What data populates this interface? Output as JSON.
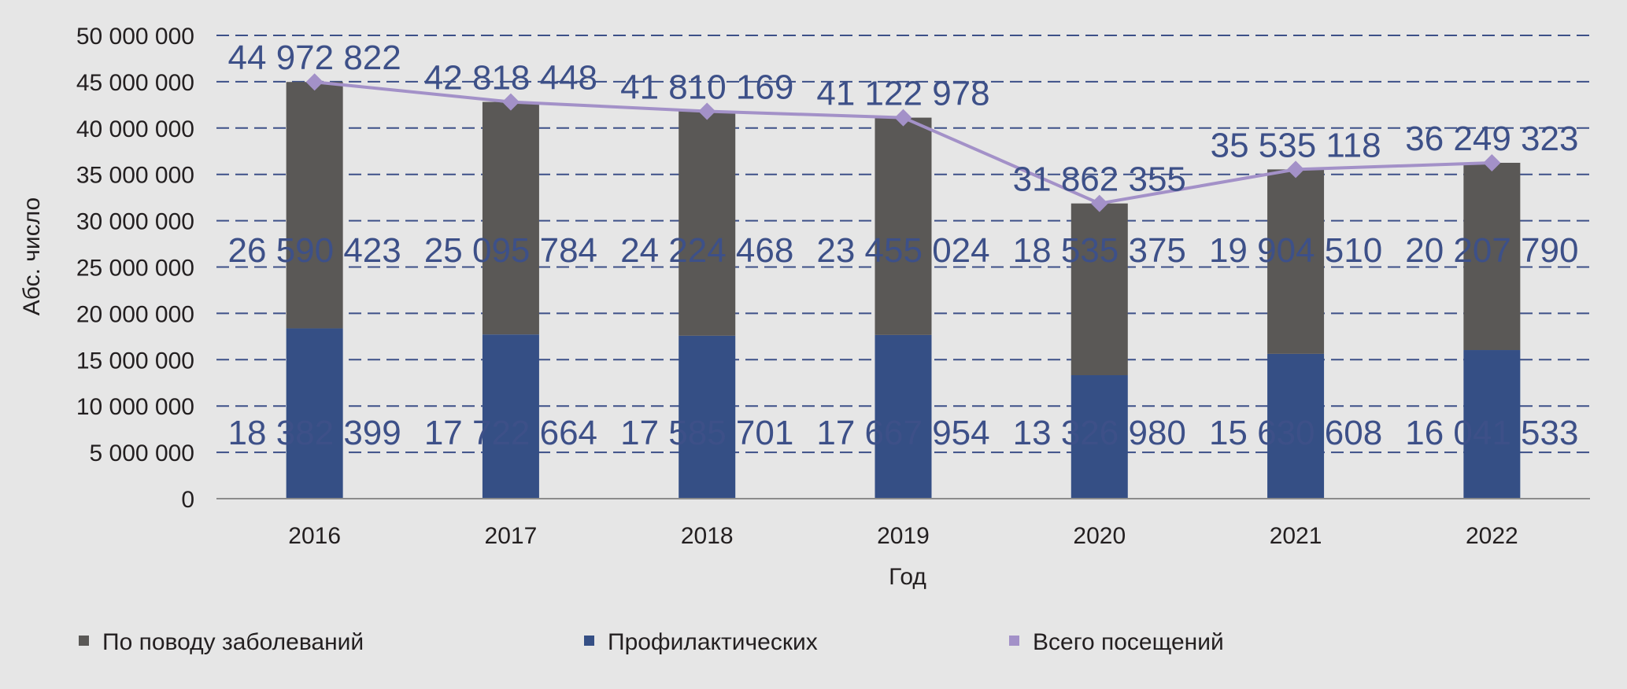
{
  "chart_data": {
    "type": "bar",
    "stacked": true,
    "categories": [
      "2016",
      "2017",
      "2018",
      "2019",
      "2020",
      "2021",
      "2022"
    ],
    "xlabel": "Год",
    "ylabel": "Абс. число",
    "ylim": [
      0,
      50000000
    ],
    "yticks": [
      0,
      5000000,
      10000000,
      15000000,
      20000000,
      25000000,
      30000000,
      35000000,
      40000000,
      45000000,
      50000000
    ],
    "ytick_labels": [
      "0",
      "5 000 000",
      "10 000 000",
      "15 000 000",
      "20 000 000",
      "25 000 000",
      "30 000 000",
      "35 000 000",
      "40 000 000",
      "45 000 000",
      "50 000 000"
    ],
    "grid": true,
    "legend_position": "bottom",
    "series": [
      {
        "name": "Профилактических",
        "kind": "bar",
        "color": "#354f85",
        "values": [
          18382399,
          17722664,
          17585701,
          17667954,
          13326980,
          15630608,
          16041533
        ],
        "labels": [
          "18 382 399",
          "17 722 664",
          "17 585 701",
          "17 667 954",
          "13 326 980",
          "15 630 608",
          "16 041 533"
        ]
      },
      {
        "name": "По поводу заболеваний",
        "kind": "bar",
        "color": "#5a5856",
        "values": [
          26590423,
          25095784,
          24224468,
          23455024,
          18535375,
          19904510,
          20207790
        ],
        "labels": [
          "26 590 423",
          "25 095 784",
          "24 224 468",
          "23 455 024",
          "18 535 375",
          "19 904 510",
          "20 207 790"
        ]
      },
      {
        "name": "Всего посещений",
        "kind": "line",
        "color": "#a391c8",
        "values": [
          44972822,
          42818448,
          41810169,
          41122978,
          31862355,
          35535118,
          36249323
        ],
        "labels": [
          "44 972 822",
          "42 818 448",
          "41 810 169",
          "41 122 978",
          "31 862 355",
          "35 535 118",
          "36 249 323"
        ]
      }
    ],
    "legend": [
      {
        "label": "По поводу заболеваний",
        "color": "#5a5856",
        "marker": "square"
      },
      {
        "label": "Профилактических",
        "color": "#354f85",
        "marker": "square"
      },
      {
        "label": "Всего посещений",
        "color": "#a391c8",
        "marker": "square"
      }
    ]
  }
}
